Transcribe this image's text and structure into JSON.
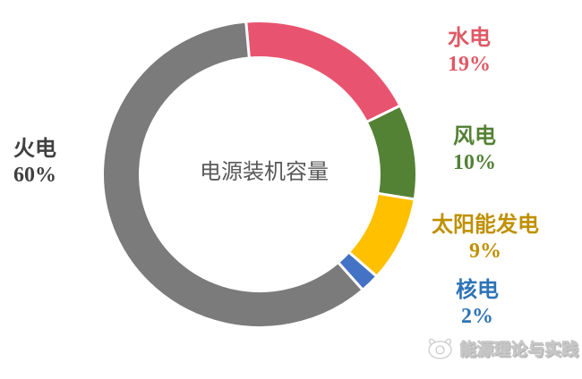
{
  "chart_data": {
    "type": "pie",
    "variant": "donut",
    "title": "电源装机容量",
    "start_angle_deg": -5,
    "legend_position": "right-and-left-callouts",
    "slices": [
      {
        "label": "水电",
        "value": 19,
        "pct": "19%",
        "color": "#e8546f",
        "label_color": "#df5965"
      },
      {
        "label": "风电",
        "value": 10,
        "pct": "10%",
        "color": "#548235",
        "label_color": "#538135"
      },
      {
        "label": "太阳能发电",
        "value": 9,
        "pct": "9%",
        "color": "#ffc000",
        "label_color": "#bf9000"
      },
      {
        "label": "核电",
        "value": 2,
        "pct": "2%",
        "color": "#4472c4",
        "label_color": "#2e74b5"
      },
      {
        "label": "火电",
        "value": 60,
        "pct": "60%",
        "color": "#7b7b7b",
        "label_color": "#404040"
      }
    ]
  },
  "watermark": {
    "text": "能源理论与实践",
    "logo": "cat-logo"
  }
}
